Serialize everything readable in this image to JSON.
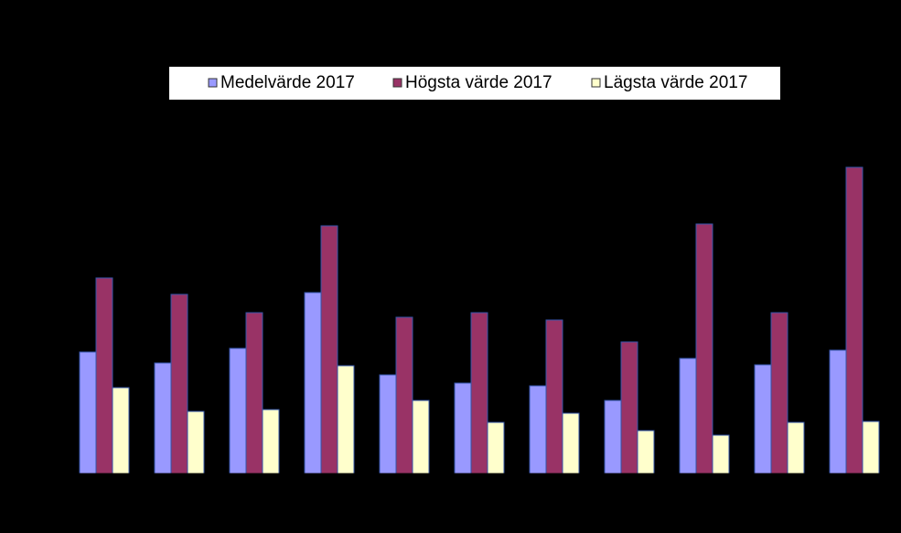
{
  "chart_data": {
    "type": "bar",
    "categories": [
      null,
      null,
      null,
      null,
      null,
      null,
      null,
      null,
      null,
      null,
      null
    ],
    "ylim": [
      0,
      350
    ],
    "series": [
      {
        "name": "Medelvärde 2017",
        "color": "#9999ff",
        "values": [
          133,
          121,
          137,
          198,
          108,
          99,
          96,
          80,
          126,
          119,
          135
        ]
      },
      {
        "name": "Högsta värde 2017",
        "color": "#993366",
        "values": [
          214,
          196,
          176,
          271,
          171,
          176,
          168,
          144,
          273,
          176,
          335
        ]
      },
      {
        "name": "Lägsta värde 2017",
        "color": "#ffffcc",
        "values": [
          94,
          68,
          70,
          118,
          80,
          56,
          66,
          47,
          42,
          56,
          57
        ]
      }
    ]
  }
}
